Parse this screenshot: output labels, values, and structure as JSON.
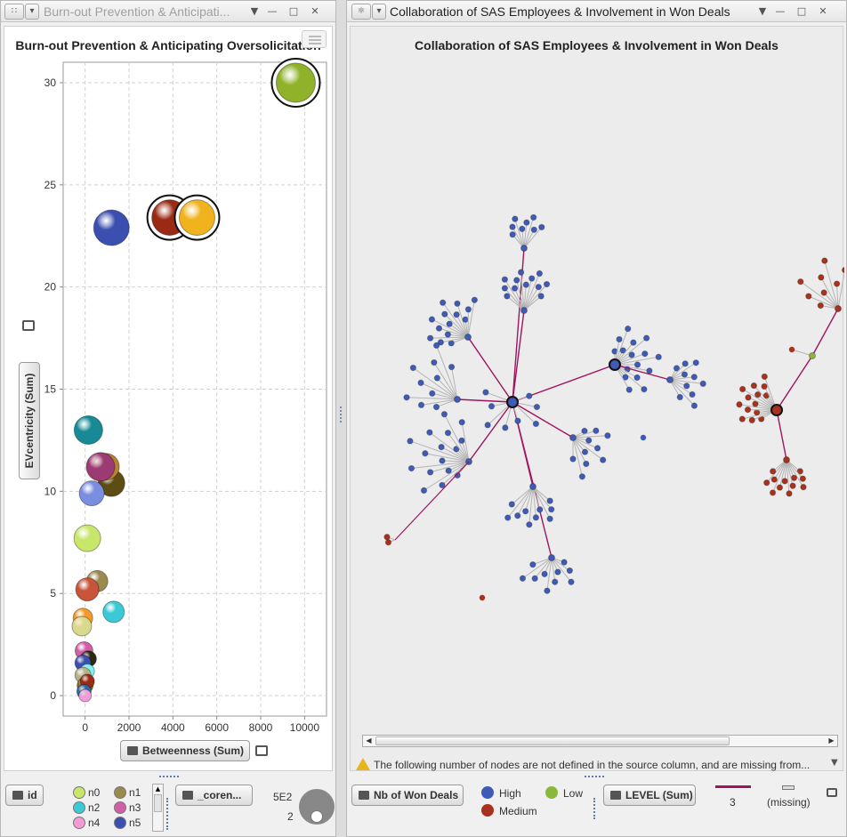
{
  "left_window": {
    "title": "Burn-out Prevention & Anticipati...",
    "chart_title": "Burn-out Prevention & Anticipating Oversolicitation",
    "x_role_label": "Betweenness (Sum)",
    "y_role_label": "EVcentricity (Sum)",
    "x_ticks": [
      "0",
      "2000",
      "4000",
      "6000",
      "8000",
      "10000"
    ],
    "y_ticks": [
      "0",
      "5",
      "10",
      "15",
      "20",
      "25",
      "30"
    ],
    "group_role_label": "id",
    "color_role_label": "_coren...",
    "size_legend": {
      "max_label": "5E2",
      "min_label": "2"
    },
    "legend_items": [
      {
        "label": "n0",
        "color": "#c8e66a"
      },
      {
        "label": "n1",
        "color": "#9a8a4e"
      },
      {
        "label": "n2",
        "color": "#3cc9d6"
      },
      {
        "label": "n3",
        "color": "#d05fa8"
      },
      {
        "label": "n4",
        "color": "#f29bd6"
      },
      {
        "label": "n5",
        "color": "#3a4fb0"
      }
    ]
  },
  "right_window": {
    "title": "Collaboration of SAS Employees & Involvement in Won Deals",
    "chart_title": "Collaboration of SAS Employees & Involvement in Won Deals",
    "warning_text": "The following number of nodes are not defined in the source column, and are missing from...",
    "size_role_label": "Nb of Won Deals",
    "color_role_label": "LEVEL (Sum)",
    "color_legend": [
      {
        "label": "High",
        "color": "#3f5bb5"
      },
      {
        "label": "Medium",
        "color": "#a8321e"
      },
      {
        "label": "Low",
        "color": "#8ab83a"
      }
    ],
    "link_legend": {
      "value_label": "3",
      "missing_label": "(missing)",
      "link_color": "#a0145e"
    }
  },
  "chart_data": {
    "type": "scatter",
    "title": "Burn-out Prevention & Anticipating Oversolicitation",
    "xlabel": "Betweenness (Sum)",
    "ylabel": "EVcentricity (Sum)",
    "xlim": [
      -1000,
      11000
    ],
    "ylim": [
      -1,
      31
    ],
    "grid": true,
    "points": [
      {
        "x": 9600,
        "y": 30,
        "r": 22,
        "color": "#8fb22a",
        "selected": true
      },
      {
        "x": 1200,
        "y": 22.9,
        "r": 20,
        "color": "#3a4fb0",
        "selected": false
      },
      {
        "x": 3850,
        "y": 23.4,
        "r": 20,
        "color": "#9b2a14",
        "selected": true
      },
      {
        "x": 5100,
        "y": 23.4,
        "r": 20,
        "color": "#f0b21d",
        "selected": true
      },
      {
        "x": 150,
        "y": 13,
        "r": 16,
        "color": "#178a96",
        "selected": false
      },
      {
        "x": 1200,
        "y": 10.4,
        "r": 15,
        "color": "#5e4d12",
        "selected": false
      },
      {
        "x": 950,
        "y": 11.2,
        "r": 15,
        "color": "#b7852f",
        "selected": false
      },
      {
        "x": 700,
        "y": 11.2,
        "r": 16,
        "color": "#9c3a73",
        "selected": false
      },
      {
        "x": 300,
        "y": 9.9,
        "r": 14,
        "color": "#7a8ee0",
        "selected": false
      },
      {
        "x": 100,
        "y": 7.7,
        "r": 15,
        "color": "#c8e66a",
        "selected": false
      },
      {
        "x": 550,
        "y": 5.6,
        "r": 12,
        "color": "#9a8a4e",
        "selected": false
      },
      {
        "x": 100,
        "y": 5.2,
        "r": 13,
        "color": "#c8543a",
        "selected": false
      },
      {
        "x": 1300,
        "y": 4.1,
        "r": 12,
        "color": "#3cc9d6",
        "selected": false
      },
      {
        "x": -100,
        "y": 3.8,
        "r": 11,
        "color": "#f29b2a",
        "selected": false
      },
      {
        "x": -150,
        "y": 3.4,
        "r": 11,
        "color": "#d8d98a",
        "selected": false
      },
      {
        "x": -50,
        "y": 2.2,
        "r": 10,
        "color": "#d05fa8",
        "selected": false
      },
      {
        "x": 150,
        "y": 1.8,
        "r": 9,
        "color": "#2a2a10",
        "selected": false
      },
      {
        "x": -100,
        "y": 1.6,
        "r": 9,
        "color": "#3a4fb0",
        "selected": false
      },
      {
        "x": 100,
        "y": 1.2,
        "r": 8,
        "color": "#7ef2f2",
        "selected": false
      },
      {
        "x": -100,
        "y": 1.0,
        "r": 9,
        "color": "#b8b08a",
        "selected": false
      },
      {
        "x": 0,
        "y": 0.5,
        "r": 9,
        "color": "#8a6a2a",
        "selected": false
      },
      {
        "x": 100,
        "y": 0.7,
        "r": 8,
        "color": "#9b2a14",
        "selected": false
      },
      {
        "x": -50,
        "y": 0.2,
        "r": 8,
        "color": "#2a6aa8",
        "selected": false
      },
      {
        "x": 0,
        "y": 0,
        "r": 7,
        "color": "#f29bd6",
        "selected": false
      }
    ]
  }
}
